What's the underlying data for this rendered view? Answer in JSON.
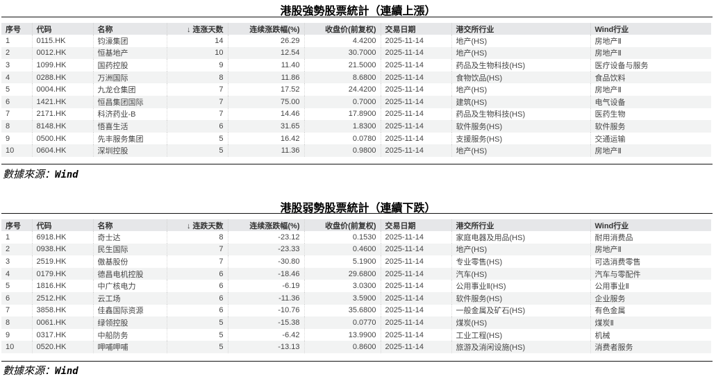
{
  "tables": [
    {
      "title": "港股強勢股票統計（連續上漲）",
      "headers": [
        "序号",
        "代码",
        "名称",
        "↓ 连涨天数",
        "连续涨跌幅(%)",
        "收盘价(前复权)",
        "交易日期",
        "港交所行业",
        "Wind行业"
      ],
      "rows": [
        [
          "1",
          "0115.HK",
          "钧濠集团",
          "14",
          "26.29",
          "4.4200",
          "2025-11-14",
          "地产(HS)",
          "房地产Ⅱ"
        ],
        [
          "2",
          "0012.HK",
          "恒基地产",
          "10",
          "12.54",
          "30.7000",
          "2025-11-14",
          "地产(HS)",
          "房地产Ⅱ"
        ],
        [
          "3",
          "1099.HK",
          "国药控股",
          "9",
          "11.40",
          "21.5000",
          "2025-11-14",
          "药品及生物科技(HS)",
          "医疗设备与服务"
        ],
        [
          "4",
          "0288.HK",
          "万洲国际",
          "8",
          "11.86",
          "8.6800",
          "2025-11-14",
          "食物饮品(HS)",
          "食品饮料"
        ],
        [
          "5",
          "0004.HK",
          "九龙仓集团",
          "7",
          "17.52",
          "24.4200",
          "2025-11-14",
          "地产(HS)",
          "房地产Ⅱ"
        ],
        [
          "6",
          "1421.HK",
          "恒昌集团国际",
          "7",
          "75.00",
          "0.7000",
          "2025-11-14",
          "建筑(HS)",
          "电气设备"
        ],
        [
          "7",
          "2171.HK",
          "科济药业-B",
          "7",
          "14.46",
          "17.8900",
          "2025-11-14",
          "药品及生物科技(HS)",
          "医药生物"
        ],
        [
          "8",
          "8148.HK",
          "悟喜生活",
          "6",
          "31.65",
          "1.8300",
          "2025-11-14",
          "软件服务(HS)",
          "软件服务"
        ],
        [
          "9",
          "0500.HK",
          "先丰服务集团",
          "5",
          "16.42",
          "0.0780",
          "2025-11-14",
          "支援服务(HS)",
          "交通运输"
        ],
        [
          "10",
          "0604.HK",
          "深圳控股",
          "5",
          "11.36",
          "0.9800",
          "2025-11-14",
          "地产(HS)",
          "房地产Ⅱ"
        ]
      ],
      "source_label": "數據來源：",
      "source_value": "Wind"
    },
    {
      "title": "港股弱勢股票統計（連續下跌）",
      "headers": [
        "序号",
        "代码",
        "名称",
        "↓ 连跌天数",
        "连续涨跌幅(%)",
        "收盘价(前复权)",
        "交易日期",
        "港交所行业",
        "Wind行业"
      ],
      "rows": [
        [
          "1",
          "6918.HK",
          "奇士达",
          "8",
          "-23.12",
          "0.1530",
          "2025-11-14",
          "家庭电器及用品(HS)",
          "耐用消费品"
        ],
        [
          "2",
          "0938.HK",
          "民生国际",
          "7",
          "-23.33",
          "0.4600",
          "2025-11-14",
          "地产(HS)",
          "房地产Ⅱ"
        ],
        [
          "3",
          "2519.HK",
          "傲基股份",
          "7",
          "-30.80",
          "5.1900",
          "2025-11-14",
          "专业零售(HS)",
          "可选消费零售"
        ],
        [
          "4",
          "0179.HK",
          "德昌电机控股",
          "6",
          "-18.46",
          "29.6800",
          "2025-11-14",
          "汽车(HS)",
          "汽车与零配件"
        ],
        [
          "5",
          "1816.HK",
          "中广核电力",
          "6",
          "-6.19",
          "3.0300",
          "2025-11-14",
          "公用事业Ⅱ(HS)",
          "公用事业Ⅱ"
        ],
        [
          "6",
          "2512.HK",
          "云工场",
          "6",
          "-11.36",
          "3.5900",
          "2025-11-14",
          "软件服务(HS)",
          "企业服务"
        ],
        [
          "7",
          "3858.HK",
          "佳鑫国际资源",
          "6",
          "-10.76",
          "35.6800",
          "2025-11-14",
          "一般金属及矿石(HS)",
          "有色金属"
        ],
        [
          "8",
          "0061.HK",
          "绿领控股",
          "5",
          "-15.38",
          "0.0770",
          "2025-11-14",
          "煤炭(HS)",
          "煤炭Ⅱ"
        ],
        [
          "9",
          "0317.HK",
          "中船防务",
          "5",
          "-6.42",
          "13.9900",
          "2025-11-14",
          "工业工程(HS)",
          "机械"
        ],
        [
          "10",
          "0520.HK",
          "呷哺呷哺",
          "5",
          "-13.13",
          "0.8600",
          "2025-11-14",
          "旅游及消闲设施(HS)",
          "消费者服务"
        ]
      ],
      "source_label": "數據來源：",
      "source_value": "Wind"
    }
  ]
}
